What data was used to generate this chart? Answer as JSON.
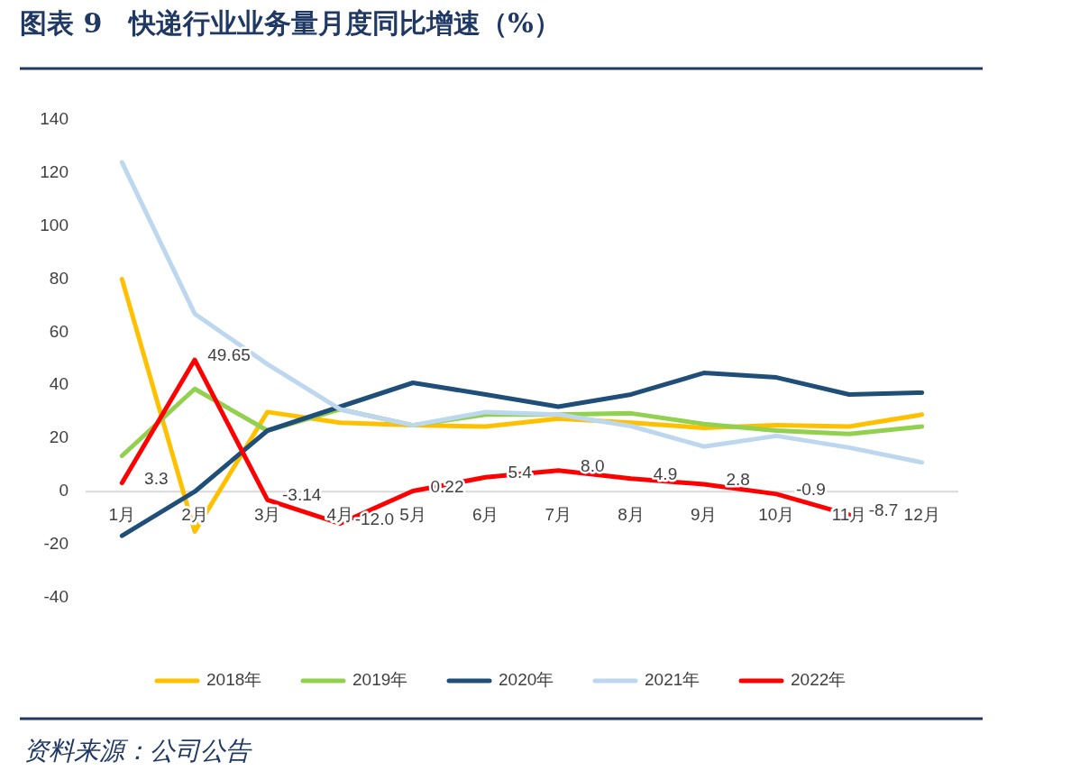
{
  "chart_data": {
    "type": "line",
    "title": "图表 9　快递行业业务量月度同比增速（%）",
    "annotations": [
      "资料来源：公司公告"
    ],
    "categories": [
      "1月",
      "2月",
      "3月",
      "4月",
      "5月",
      "6月",
      "7月",
      "8月",
      "9月",
      "10月",
      "11月",
      "12月"
    ],
    "ylim": [
      -40,
      140
    ],
    "yticks": [
      -40,
      -20,
      0,
      20,
      40,
      60,
      80,
      100,
      120,
      140
    ],
    "grid": false,
    "legend": "bottom",
    "marker": "none",
    "line_style": "solid",
    "series": [
      {
        "name": "2018年",
        "color": "#ffc000",
        "values": [
          80,
          -15,
          30,
          26,
          25,
          24.5,
          27.5,
          26,
          24,
          25,
          24.5,
          29
        ]
      },
      {
        "name": "2019年",
        "color": "#92d050",
        "values": [
          13.5,
          38.7,
          23,
          31,
          25,
          29,
          29,
          29.5,
          25.5,
          23,
          21.7,
          24.5
        ]
      },
      {
        "name": "2020年",
        "color": "#1f4e79",
        "values": [
          -16.6,
          0,
          23,
          32,
          41,
          36.6,
          32,
          36.6,
          44.7,
          43,
          36.6,
          37.3
        ]
      },
      {
        "name": "2021年",
        "color": "#bdd7ee",
        "values": [
          124,
          67,
          48,
          31,
          25,
          30,
          29,
          24.7,
          17,
          21,
          16.6,
          11
        ]
      },
      {
        "name": "2022年",
        "color": "#ff0000",
        "values": [
          3.3,
          49.65,
          -3.14,
          -12.0,
          0.22,
          5.4,
          8.0,
          4.9,
          2.8,
          -0.9,
          -8.7,
          null
        ],
        "value_labels": [
          "3.3",
          "49.65",
          "-3.14",
          "-12.0",
          "0.22",
          "5.4",
          "8.0",
          "4.9",
          "2.8",
          "-0.9",
          "-8.7",
          null
        ]
      }
    ]
  }
}
